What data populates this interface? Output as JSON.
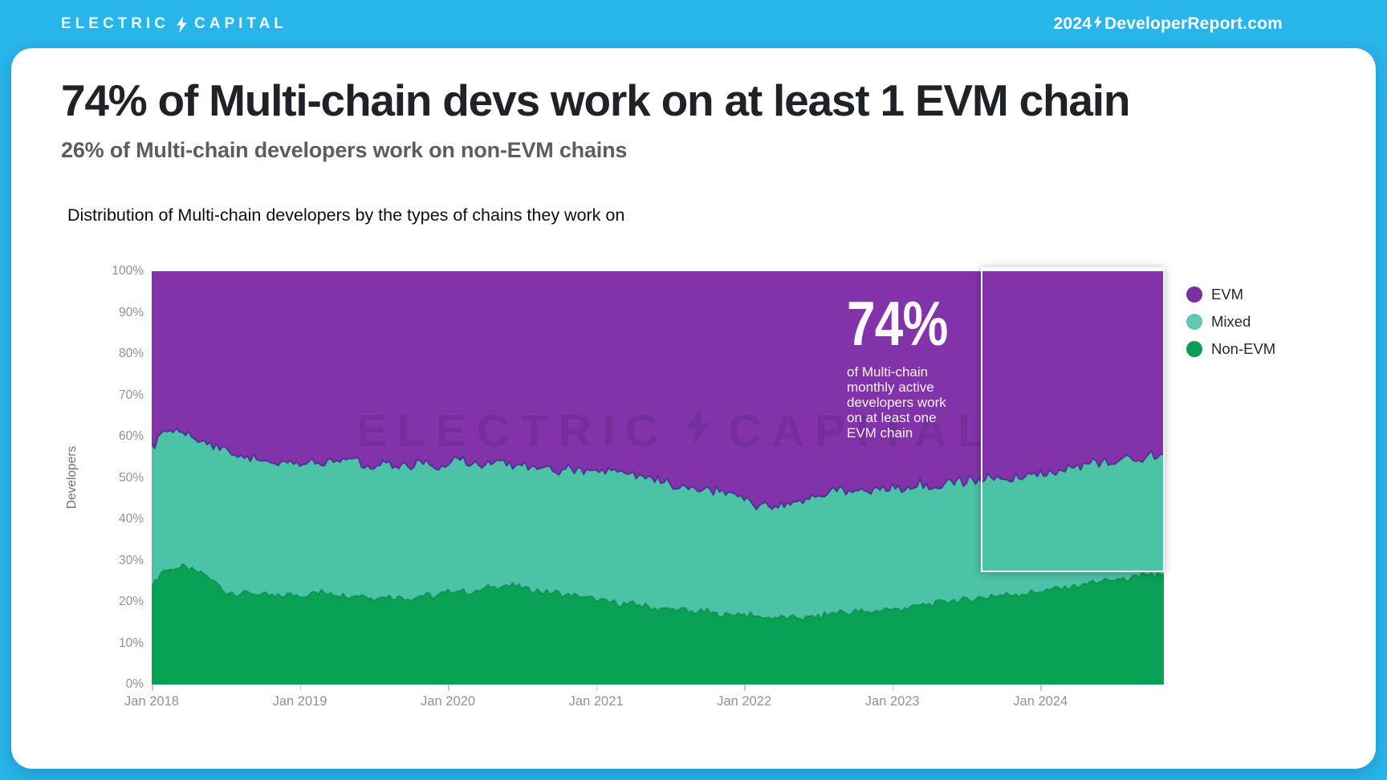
{
  "header": {
    "logo_left": "ELECTRIC",
    "logo_right": "CAPITAL",
    "site_year": "2024",
    "site_domain": "DeveloperReport.com",
    "bar_color": "#28b5ea"
  },
  "title": "74% of Multi-chain devs work on at least 1 EVM chain",
  "subtitle": "26% of Multi-chain developers work on non-EVM chains",
  "chart_heading": "Distribution of Multi-chain developers by the types of chains they work on",
  "annotation": {
    "big": "74%",
    "lines": [
      "of Multi-chain",
      "monthly active",
      "developers work",
      "on at least one",
      "EVM chain"
    ]
  },
  "watermark": {
    "left": "ELECTRIC",
    "right": "CAPITAL"
  },
  "legend": [
    {
      "label": "EVM",
      "color": "#7d2fa0"
    },
    {
      "label": "Mixed",
      "color": "#62c9b0"
    },
    {
      "label": "Non-EVM",
      "color": "#0d9b53"
    }
  ],
  "chart_data": {
    "type": "area",
    "stacked": true,
    "unit": "percent",
    "title": "Distribution of Multi-chain developers by the types of chains they work on",
    "xlabel": "",
    "ylabel": "Developers",
    "ylim": [
      0,
      100
    ],
    "grid": false,
    "legend_position": "right",
    "yticks_percent": [
      0,
      10,
      20,
      30,
      40,
      50,
      60,
      70,
      80,
      90,
      100
    ],
    "xticks": [
      "Jan 2018",
      "Jan 2019",
      "Jan 2020",
      "Jan 2021",
      "Jan 2022",
      "Jan 2023",
      "Jan 2024"
    ],
    "xtick_month_indexes": [
      0,
      12,
      24,
      36,
      48,
      60,
      72
    ],
    "x_months": [
      "2018-01",
      "2018-02",
      "2018-03",
      "2018-04",
      "2018-05",
      "2018-06",
      "2018-07",
      "2018-08",
      "2018-09",
      "2018-10",
      "2018-11",
      "2018-12",
      "2019-01",
      "2019-02",
      "2019-03",
      "2019-04",
      "2019-05",
      "2019-06",
      "2019-07",
      "2019-08",
      "2019-09",
      "2019-10",
      "2019-11",
      "2019-12",
      "2020-01",
      "2020-02",
      "2020-03",
      "2020-04",
      "2020-05",
      "2020-06",
      "2020-07",
      "2020-08",
      "2020-09",
      "2020-10",
      "2020-11",
      "2020-12",
      "2021-01",
      "2021-02",
      "2021-03",
      "2021-04",
      "2021-05",
      "2021-06",
      "2021-07",
      "2021-08",
      "2021-09",
      "2021-10",
      "2021-11",
      "2021-12",
      "2022-01",
      "2022-02",
      "2022-03",
      "2022-04",
      "2022-05",
      "2022-06",
      "2022-07",
      "2022-08",
      "2022-09",
      "2022-10",
      "2022-11",
      "2022-12",
      "2023-01",
      "2023-02",
      "2023-03",
      "2023-04",
      "2023-05",
      "2023-06",
      "2023-07",
      "2023-08",
      "2023-09",
      "2023-10",
      "2023-11",
      "2023-12",
      "2024-01",
      "2024-02",
      "2024-03",
      "2024-04",
      "2024-05",
      "2024-06",
      "2024-07",
      "2024-08",
      "2024-09",
      "2024-10",
      "2024-11"
    ],
    "series": [
      {
        "name": "Non-EVM",
        "stack_order": 0,
        "color": "#09a254",
        "edge_color": "#078742",
        "values": [
          24,
          27.5,
          28.5,
          28,
          27,
          25,
          22.5,
          22,
          22,
          21.5,
          21.5,
          21.5,
          21.5,
          22,
          22.5,
          22,
          21.5,
          21.5,
          21,
          21.5,
          21,
          21,
          21.5,
          21.5,
          22.5,
          23,
          22,
          23.5,
          24,
          24,
          23.5,
          23,
          22.5,
          22,
          21.5,
          21,
          20.5,
          20,
          19.5,
          19.5,
          19,
          18.5,
          18.5,
          18,
          17.5,
          17.5,
          17,
          17,
          17,
          16.5,
          16,
          16,
          16.5,
          16,
          16.5,
          17,
          17.5,
          17.5,
          17.5,
          18,
          18,
          18.5,
          19,
          19.5,
          20,
          20.5,
          20.5,
          21,
          21.5,
          21.5,
          22,
          22,
          22.5,
          23,
          23.5,
          24,
          24.5,
          25,
          25.5,
          25.5,
          26,
          26.5,
          26.5
        ]
      },
      {
        "name": "Mixed",
        "stack_order": 1,
        "color": "#4cc2a6",
        "edge_color": "#4b2b8f",
        "values": [
          33,
          33.5,
          33.5,
          32.5,
          32,
          32.5,
          34.5,
          34,
          33,
          33,
          32.5,
          32,
          32,
          32.5,
          31,
          32,
          33.5,
          31.5,
          31.5,
          32,
          31.5,
          32,
          32.5,
          31.5,
          31,
          31.5,
          30.5,
          29.5,
          30.5,
          29,
          30,
          29.5,
          30.5,
          30,
          31,
          30.5,
          31,
          32,
          31.5,
          31,
          31,
          31,
          30,
          30,
          30,
          30,
          30,
          29.5,
          28.5,
          27,
          26.8,
          27.5,
          27.5,
          29,
          29.5,
          30,
          30,
          29.5,
          29,
          29,
          29.5,
          29.5,
          29.5,
          28.5,
          28.5,
          28.5,
          29,
          28.5,
          28.5,
          29,
          28,
          28.5,
          28.5,
          28.5,
          29,
          29,
          29,
          29,
          28.5,
          29,
          28.5,
          28.8,
          29
        ]
      },
      {
        "name": "EVM",
        "stack_order": 2,
        "color": "#8233aa",
        "edge_color": "#8233aa",
        "values": [
          43,
          39,
          38,
          39.5,
          41,
          42.5,
          43,
          44,
          45,
          45.5,
          46,
          46.5,
          46.5,
          45.5,
          46.5,
          46,
          45,
          47,
          47.5,
          46.5,
          47.5,
          47,
          46,
          47,
          46.5,
          45.5,
          47.5,
          47,
          45.5,
          47,
          46.5,
          47.5,
          47,
          48,
          47.5,
          48.5,
          48.5,
          48,
          49,
          49.5,
          50,
          50.5,
          51.5,
          52,
          52.5,
          52.5,
          53,
          53.5,
          54.5,
          56.5,
          57.2,
          56.5,
          56,
          55,
          54,
          53,
          52.5,
          53,
          53.5,
          53,
          52.5,
          52,
          51.5,
          52,
          51.5,
          51,
          50.5,
          50.5,
          50,
          49.5,
          50,
          49.5,
          49,
          48.5,
          47.5,
          47,
          46.5,
          46,
          46,
          45.5,
          45.5,
          44.7,
          44.5
        ]
      }
    ]
  }
}
